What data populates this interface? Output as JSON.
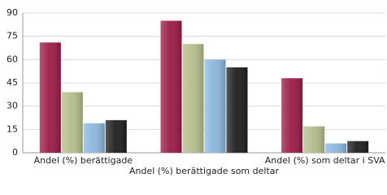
{
  "chart_data": {
    "type": "bar",
    "categories": [
      "Andel (%) berättigade",
      "Andel (%) berättigade som deltar",
      "Andel (%) som deltar i SVA"
    ],
    "series": [
      {
        "color": "#9b1b46",
        "values": [
          71,
          85,
          48
        ]
      },
      {
        "color": "#b3bd8a",
        "values": [
          39,
          70,
          17
        ]
      },
      {
        "color": "#8ab6de",
        "values": [
          19,
          60,
          6
        ]
      },
      {
        "color": "#1e1e1e",
        "values": [
          21,
          55,
          7.5
        ]
      }
    ],
    "ylim": [
      0,
      90
    ],
    "yticks": [
      0,
      15,
      30,
      45,
      60,
      75,
      90
    ],
    "grid": true
  }
}
